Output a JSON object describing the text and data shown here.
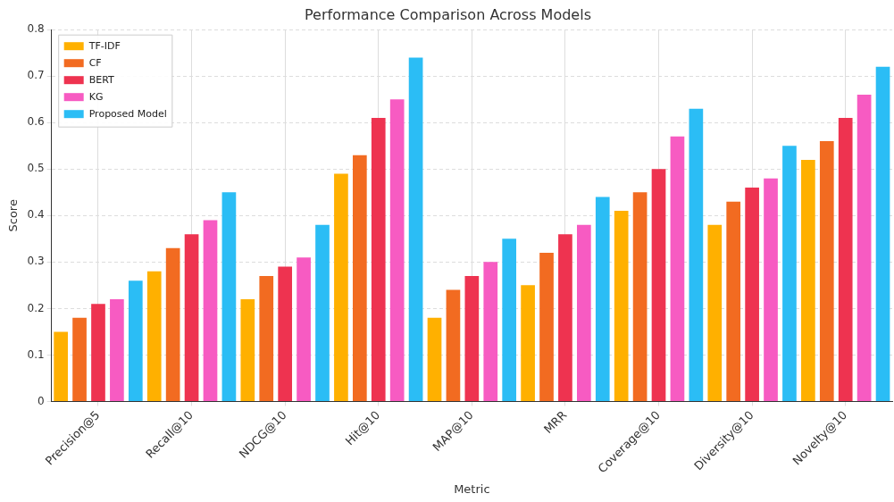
{
  "chart_data": {
    "type": "bar",
    "title": "Performance Comparison Across Models",
    "xlabel": "Metric",
    "ylabel": "Score",
    "categories": [
      "Precision@5",
      "Recall@10",
      "NDCG@10",
      "Hit@10",
      "MAP@10",
      "MRR",
      "Coverage@10",
      "Diversity@10",
      "Novelty@10"
    ],
    "series": [
      {
        "name": "TF-IDF",
        "color": "#ffb000",
        "values": [
          0.15,
          0.28,
          0.22,
          0.49,
          0.18,
          0.25,
          0.41,
          0.38,
          0.52
        ]
      },
      {
        "name": "CF",
        "color": "#f26b21",
        "values": [
          0.18,
          0.33,
          0.27,
          0.53,
          0.24,
          0.32,
          0.45,
          0.43,
          0.56
        ]
      },
      {
        "name": "BERT",
        "color": "#ee3350",
        "values": [
          0.21,
          0.36,
          0.29,
          0.61,
          0.27,
          0.36,
          0.5,
          0.46,
          0.61
        ]
      },
      {
        "name": "KG",
        "color": "#f75bc2",
        "values": [
          0.22,
          0.39,
          0.31,
          0.65,
          0.3,
          0.38,
          0.57,
          0.48,
          0.66
        ]
      },
      {
        "name": "Proposed Model",
        "color": "#2bbdf5",
        "values": [
          0.26,
          0.45,
          0.38,
          0.74,
          0.35,
          0.44,
          0.63,
          0.55,
          0.72
        ]
      }
    ],
    "ylim": [
      0,
      0.8
    ],
    "yticks": [
      0,
      0.1,
      0.2,
      0.3,
      0.4,
      0.5,
      0.6,
      0.7,
      0.8
    ],
    "grid": true,
    "legend": "top left"
  }
}
